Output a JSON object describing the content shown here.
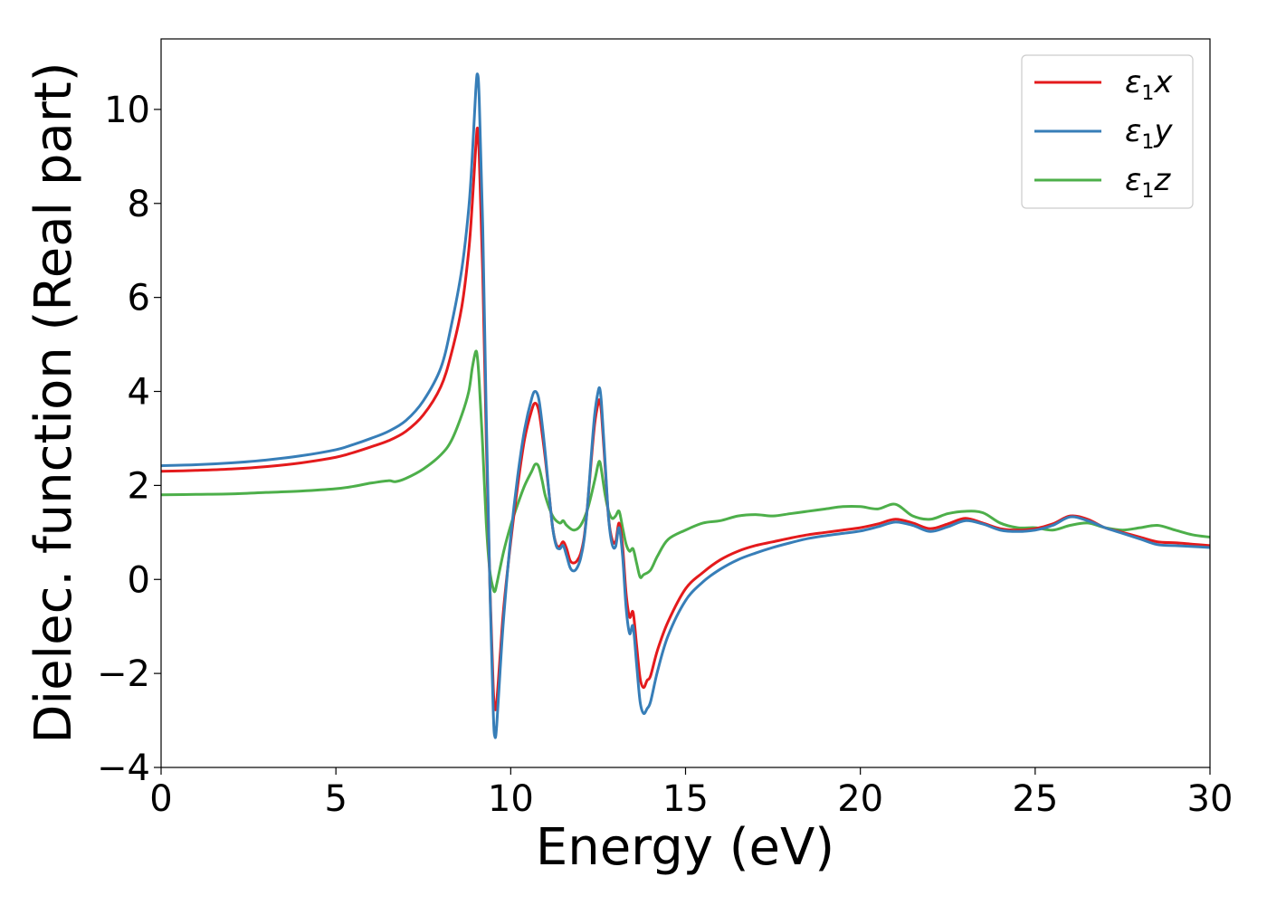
{
  "chart_data": {
    "type": "line",
    "xlabel": "Energy (eV)",
    "ylabel": "Dielec. function (Real part)",
    "xlim": [
      0,
      30
    ],
    "ylim": [
      -4,
      11.5
    ],
    "xticks": [
      0,
      5,
      10,
      15,
      20,
      25,
      30
    ],
    "yticks": [
      -4,
      -2,
      0,
      2,
      4,
      6,
      8,
      10
    ],
    "grid": false,
    "legend_position": "top-right",
    "series": [
      {
        "name": "ε1x",
        "sym": "ε",
        "sub": "1",
        "axis": "x",
        "color": "#e41a1c",
        "x": [
          0,
          1,
          2,
          3,
          4,
          5,
          5.5,
          6,
          6.5,
          7,
          7.5,
          8,
          8.3,
          8.6,
          8.8,
          8.9,
          9.0,
          9.05,
          9.1,
          9.2,
          9.3,
          9.4,
          9.5,
          9.55,
          9.6,
          9.7,
          9.8,
          10.0,
          10.2,
          10.4,
          10.6,
          10.7,
          10.8,
          10.9,
          11.0,
          11.1,
          11.2,
          11.3,
          11.4,
          11.5,
          11.6,
          11.7,
          11.8,
          11.9,
          12.0,
          12.1,
          12.2,
          12.3,
          12.4,
          12.5,
          12.55,
          12.6,
          12.7,
          12.8,
          12.9,
          13.0,
          13.1,
          13.2,
          13.3,
          13.4,
          13.5,
          13.6,
          13.7,
          13.8,
          13.9,
          14.0,
          14.2,
          14.5,
          15.0,
          15.5,
          16.0,
          16.5,
          17.0,
          17.5,
          18.0,
          18.5,
          19.0,
          19.5,
          20.0,
          20.5,
          21.0,
          21.5,
          22.0,
          22.5,
          23.0,
          23.5,
          24.0,
          24.5,
          25.0,
          25.5,
          26.0,
          26.5,
          27.0,
          27.5,
          28.0,
          28.5,
          29.0,
          29.5,
          30.0
        ],
        "y": [
          2.3,
          2.32,
          2.35,
          2.4,
          2.48,
          2.6,
          2.7,
          2.82,
          2.95,
          3.15,
          3.5,
          4.1,
          4.8,
          5.8,
          7.0,
          8.0,
          9.2,
          9.6,
          9.0,
          6.5,
          3.0,
          0.0,
          -2.3,
          -2.75,
          -2.6,
          -1.6,
          -0.6,
          0.8,
          2.0,
          3.0,
          3.6,
          3.75,
          3.6,
          3.1,
          2.5,
          1.8,
          1.1,
          0.75,
          0.7,
          0.8,
          0.65,
          0.4,
          0.35,
          0.4,
          0.55,
          0.9,
          1.6,
          2.5,
          3.3,
          3.75,
          3.8,
          3.5,
          2.4,
          1.3,
          0.85,
          0.8,
          1.2,
          0.7,
          -0.3,
          -0.8,
          -0.7,
          -1.4,
          -2.1,
          -2.3,
          -2.15,
          -2.05,
          -1.5,
          -0.9,
          -0.2,
          0.15,
          0.42,
          0.6,
          0.72,
          0.8,
          0.88,
          0.95,
          1.0,
          1.05,
          1.1,
          1.18,
          1.28,
          1.2,
          1.08,
          1.18,
          1.3,
          1.2,
          1.08,
          1.05,
          1.08,
          1.18,
          1.35,
          1.28,
          1.1,
          1.0,
          0.9,
          0.8,
          0.78,
          0.75,
          0.72
        ]
      },
      {
        "name": "ε1y",
        "sym": "ε",
        "sub": "1",
        "axis": "y",
        "color": "#377eb8",
        "x": [
          0,
          1,
          2,
          3,
          4,
          5,
          5.5,
          6,
          6.5,
          7,
          7.5,
          8,
          8.3,
          8.6,
          8.8,
          8.9,
          9.0,
          9.05,
          9.1,
          9.2,
          9.3,
          9.4,
          9.5,
          9.55,
          9.6,
          9.7,
          9.8,
          10.0,
          10.2,
          10.4,
          10.6,
          10.7,
          10.8,
          10.9,
          11.0,
          11.1,
          11.2,
          11.3,
          11.4,
          11.5,
          11.6,
          11.7,
          11.8,
          11.9,
          12.0,
          12.1,
          12.2,
          12.3,
          12.4,
          12.5,
          12.55,
          12.6,
          12.7,
          12.8,
          12.9,
          13.0,
          13.1,
          13.2,
          13.3,
          13.4,
          13.5,
          13.6,
          13.7,
          13.8,
          13.9,
          14.0,
          14.2,
          14.5,
          15.0,
          15.5,
          16.0,
          16.5,
          17.0,
          17.5,
          18.0,
          18.5,
          19.0,
          19.5,
          20.0,
          20.5,
          21.0,
          21.5,
          22.0,
          22.5,
          23.0,
          23.5,
          24.0,
          24.5,
          25.0,
          25.5,
          26.0,
          26.5,
          27.0,
          27.5,
          28.0,
          28.5,
          29.0,
          29.5,
          30.0
        ],
        "y": [
          2.42,
          2.44,
          2.48,
          2.54,
          2.63,
          2.76,
          2.87,
          3.0,
          3.15,
          3.38,
          3.8,
          4.5,
          5.4,
          6.6,
          7.9,
          9.0,
          10.4,
          10.75,
          10.2,
          7.5,
          3.5,
          0.0,
          -2.8,
          -3.35,
          -3.1,
          -1.9,
          -0.8,
          0.9,
          2.2,
          3.2,
          3.85,
          4.0,
          3.85,
          3.3,
          2.6,
          1.8,
          1.1,
          0.72,
          0.65,
          0.72,
          0.5,
          0.25,
          0.18,
          0.25,
          0.45,
          0.85,
          1.6,
          2.6,
          3.5,
          4.0,
          4.05,
          3.7,
          2.5,
          1.3,
          0.75,
          0.7,
          1.1,
          0.5,
          -0.6,
          -1.15,
          -1.0,
          -1.8,
          -2.6,
          -2.85,
          -2.75,
          -2.6,
          -1.95,
          -1.2,
          -0.45,
          -0.05,
          0.22,
          0.42,
          0.56,
          0.68,
          0.78,
          0.87,
          0.93,
          0.98,
          1.03,
          1.12,
          1.22,
          1.15,
          1.02,
          1.12,
          1.25,
          1.18,
          1.05,
          1.02,
          1.05,
          1.15,
          1.33,
          1.25,
          1.1,
          0.98,
          0.86,
          0.74,
          0.72,
          0.7,
          0.68
        ]
      },
      {
        "name": "ε1z",
        "sym": "ε",
        "sub": "1",
        "axis": "z",
        "color": "#4daf4a",
        "x": [
          0,
          1,
          2,
          3,
          4,
          5,
          5.5,
          6,
          6.5,
          6.7,
          7,
          7.5,
          8,
          8.3,
          8.6,
          8.8,
          8.9,
          9.0,
          9.05,
          9.1,
          9.2,
          9.3,
          9.4,
          9.5,
          9.55,
          9.6,
          9.8,
          10.0,
          10.2,
          10.4,
          10.6,
          10.7,
          10.8,
          10.9,
          11.0,
          11.2,
          11.4,
          11.5,
          11.6,
          11.8,
          12.0,
          12.2,
          12.4,
          12.5,
          12.55,
          12.6,
          12.7,
          12.8,
          12.9,
          13.0,
          13.1,
          13.2,
          13.3,
          13.4,
          13.5,
          13.6,
          13.7,
          13.8,
          14.0,
          14.2,
          14.5,
          15.0,
          15.5,
          16.0,
          16.5,
          17.0,
          17.5,
          18.0,
          18.5,
          19.0,
          19.5,
          20.0,
          20.5,
          21.0,
          21.5,
          22.0,
          22.5,
          23.0,
          23.5,
          24.0,
          24.5,
          25.0,
          25.5,
          26.0,
          26.5,
          27.0,
          27.5,
          28.0,
          28.5,
          29.0,
          29.5,
          30.0
        ],
        "y": [
          1.8,
          1.81,
          1.82,
          1.85,
          1.88,
          1.93,
          1.98,
          2.05,
          2.1,
          2.08,
          2.15,
          2.35,
          2.65,
          2.95,
          3.5,
          4.0,
          4.5,
          4.85,
          4.7,
          4.2,
          2.8,
          1.2,
          0.2,
          -0.2,
          -0.25,
          -0.1,
          0.6,
          1.15,
          1.6,
          2.0,
          2.3,
          2.45,
          2.4,
          2.1,
          1.75,
          1.35,
          1.2,
          1.25,
          1.15,
          1.05,
          1.15,
          1.5,
          2.1,
          2.45,
          2.5,
          2.3,
          1.8,
          1.45,
          1.3,
          1.35,
          1.45,
          1.1,
          0.75,
          0.6,
          0.65,
          0.35,
          0.05,
          0.1,
          0.2,
          0.5,
          0.85,
          1.05,
          1.2,
          1.25,
          1.35,
          1.38,
          1.35,
          1.4,
          1.45,
          1.5,
          1.55,
          1.55,
          1.5,
          1.6,
          1.35,
          1.28,
          1.4,
          1.45,
          1.42,
          1.2,
          1.1,
          1.1,
          1.05,
          1.15,
          1.2,
          1.1,
          1.05,
          1.1,
          1.15,
          1.05,
          0.95,
          0.9
        ]
      }
    ]
  }
}
